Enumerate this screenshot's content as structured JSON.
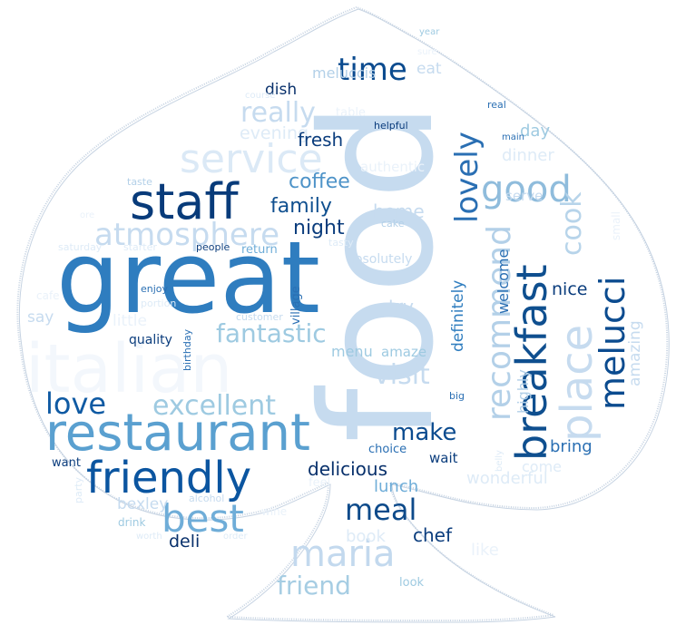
{
  "title": "",
  "colors": {
    "background": "#ffffff",
    "outline": "#c6d3e2",
    "palette": [
      "#08306b",
      "#08519c",
      "#2171b5",
      "#4292c6",
      "#6baed6",
      "#9ecae1",
      "#c6dbef",
      "#deebf7",
      "#eff5fb"
    ]
  },
  "words": [
    {
      "text": "food",
      "color": "#c6dbef",
      "vertical": true
    },
    {
      "text": "great",
      "color": "#2f7dbf",
      "vertical": false
    },
    {
      "text": "italian",
      "color": "#f3f7fc",
      "vertical": false
    },
    {
      "text": "restaurant",
      "color": "#5aa0d0",
      "vertical": false
    },
    {
      "text": "friendly",
      "color": "#0b55a0",
      "vertical": false
    },
    {
      "text": "staff",
      "color": "#083b7a",
      "vertical": false
    },
    {
      "text": "breakfast",
      "color": "#0f4f8f",
      "vertical": true
    },
    {
      "text": "place",
      "color": "#c6dbef",
      "vertical": true
    },
    {
      "text": "melucci",
      "color": "#0b4b8f",
      "vertical": true
    },
    {
      "text": "recommend",
      "color": "#b3d0e8",
      "vertical": true
    },
    {
      "text": "lovely",
      "color": "#2a6fb3",
      "vertical": true
    },
    {
      "text": "service",
      "color": "#dbe9f6",
      "vertical": false
    },
    {
      "text": "good",
      "color": "#8fbcdc",
      "vertical": false
    },
    {
      "text": "best",
      "color": "#6fadd8",
      "vertical": false
    },
    {
      "text": "maria",
      "color": "#c3d9ee",
      "vertical": false
    },
    {
      "text": "atmosphere",
      "color": "#c6dbef",
      "vertical": false
    },
    {
      "text": "excellent",
      "color": "#9ecae1",
      "vertical": false
    },
    {
      "text": "meal",
      "color": "#0d4a8a",
      "vertical": false
    },
    {
      "text": "love",
      "color": "#0f5aa3",
      "vertical": false
    },
    {
      "text": "time",
      "color": "#0b4b8f",
      "vertical": false
    },
    {
      "text": "really",
      "color": "#c6dbef",
      "vertical": false
    },
    {
      "text": "fantastic",
      "color": "#9ecae1",
      "vertical": false
    },
    {
      "text": "visit",
      "color": "#c6dbef",
      "vertical": false
    },
    {
      "text": "cook",
      "color": "#b7d4ea",
      "vertical": true
    },
    {
      "text": "make",
      "color": "#0b4b8f",
      "vertical": false
    },
    {
      "text": "friend",
      "color": "#a6cde3",
      "vertical": false
    },
    {
      "text": "family",
      "color": "#0f4f8f",
      "vertical": false
    },
    {
      "text": "coffee",
      "color": "#4e93c8",
      "vertical": false
    },
    {
      "text": "night",
      "color": "#0b3d7d",
      "vertical": false
    },
    {
      "text": "home",
      "color": "#c6dbef",
      "vertical": false
    },
    {
      "text": "evening",
      "color": "#deebf7",
      "vertical": false
    },
    {
      "text": "fresh",
      "color": "#0b3d7d",
      "vertical": false
    },
    {
      "text": "dish",
      "color": "#08306b",
      "vertical": false
    },
    {
      "text": "eat",
      "color": "#c6dbef",
      "vertical": false
    },
    {
      "text": "meluccis",
      "color": "#b3d0e8",
      "vertical": false
    },
    {
      "text": "day",
      "color": "#9ecae1",
      "vertical": false
    },
    {
      "text": "dinner",
      "color": "#deebf7",
      "vertical": false
    },
    {
      "text": "authentic",
      "color": "#eaf2fa",
      "vertical": false
    },
    {
      "text": "serve",
      "color": "#c6dbef",
      "vertical": false
    },
    {
      "text": "welcome",
      "color": "#2a6fb3",
      "vertical": true
    },
    {
      "text": "definitely",
      "color": "#2f7dbf",
      "vertical": true
    },
    {
      "text": "highly",
      "color": "#b3d0e8",
      "vertical": true
    },
    {
      "text": "try",
      "color": "#c6dbef",
      "vertical": false
    },
    {
      "text": "nice",
      "color": "#0b3d7d",
      "vertical": false
    },
    {
      "text": "amazing",
      "color": "#c6dbef",
      "vertical": true
    },
    {
      "text": "delicious",
      "color": "#08306b",
      "vertical": false
    },
    {
      "text": "lunch",
      "color": "#6fadd8",
      "vertical": false
    },
    {
      "text": "bring",
      "color": "#2a6fb3",
      "vertical": false
    },
    {
      "text": "menu",
      "color": "#9ecae1",
      "vertical": false
    },
    {
      "text": "amaze",
      "color": "#9ecae1",
      "vertical": false
    },
    {
      "text": "chef",
      "color": "#0b3d7d",
      "vertical": false
    },
    {
      "text": "wonderful",
      "color": "#deebf7",
      "vertical": false
    },
    {
      "text": "come",
      "color": "#deebf7",
      "vertical": false
    },
    {
      "text": "bexley",
      "color": "#c6dbef",
      "vertical": false
    },
    {
      "text": "deli",
      "color": "#08306b",
      "vertical": false
    },
    {
      "text": "book",
      "color": "#deebf7",
      "vertical": false
    },
    {
      "text": "like",
      "color": "#eaf2fa",
      "vertical": false
    },
    {
      "text": "wait",
      "color": "#0b3d7d",
      "vertical": false
    },
    {
      "text": "choice",
      "color": "#2a6fb3",
      "vertical": false
    },
    {
      "text": "want",
      "color": "#0b3d7d",
      "vertical": false
    },
    {
      "text": "little",
      "color": "#eaf2fa",
      "vertical": false
    },
    {
      "text": "say",
      "color": "#c6dbef",
      "vertical": false
    },
    {
      "text": "quality",
      "color": "#0b3d7d",
      "vertical": false
    },
    {
      "text": "return",
      "color": "#6fadd8",
      "vertical": false
    },
    {
      "text": "absolutely",
      "color": "#c6dbef",
      "vertical": false
    },
    {
      "text": "village",
      "color": "#2a6fb3",
      "vertical": true
    },
    {
      "text": "customer",
      "color": "#c6dbef",
      "vertical": false
    },
    {
      "text": "birthday",
      "color": "#2a6fb3",
      "vertical": true
    },
    {
      "text": "enjoy",
      "color": "#2a6fb3",
      "vertical": false
    },
    {
      "text": "portion",
      "color": "#deebf7",
      "vertical": false
    },
    {
      "text": "people",
      "color": "#0b3d7d",
      "vertical": false
    },
    {
      "text": "tasty",
      "color": "#deebf7",
      "vertical": false
    },
    {
      "text": "cake",
      "color": "#b3d0e8",
      "vertical": false
    },
    {
      "text": "taste",
      "color": "#b3d0e8",
      "vertical": false
    },
    {
      "text": "starter",
      "color": "#deebf7",
      "vertical": false
    },
    {
      "text": "saturday",
      "color": "#deebf7",
      "vertical": false
    },
    {
      "text": "cafe",
      "color": "#eaf2fa",
      "vertical": false
    },
    {
      "text": "drink",
      "color": "#9ecae1",
      "vertical": false
    },
    {
      "text": "wine",
      "color": "#eaf2fa",
      "vertical": false
    },
    {
      "text": "worth",
      "color": "#deebf7",
      "vertical": false
    },
    {
      "text": "order",
      "color": "#deebf7",
      "vertical": false
    },
    {
      "text": "alcohol",
      "color": "#c6dbef",
      "vertical": false
    },
    {
      "text": "party",
      "color": "#deebf7",
      "vertical": true
    },
    {
      "text": "feel",
      "color": "#eaf2fa",
      "vertical": false
    },
    {
      "text": "look",
      "color": "#9ecae1",
      "vertical": false
    },
    {
      "text": "helpful",
      "color": "#0b3d7d",
      "vertical": false
    },
    {
      "text": "course",
      "color": "#deebf7",
      "vertical": false
    },
    {
      "text": "table",
      "color": "#eaf2fa",
      "vertical": false
    },
    {
      "text": "year",
      "color": "#9ecae1",
      "vertical": false
    },
    {
      "text": "sure",
      "color": "#eaf2fa",
      "vertical": false
    },
    {
      "text": "real",
      "color": "#2a6fb3",
      "vertical": false
    },
    {
      "text": "main",
      "color": "#2a6fb3",
      "vertical": false
    },
    {
      "text": "small",
      "color": "#eaf2fa",
      "vertical": true
    },
    {
      "text": "big",
      "color": "#2a6fb3",
      "vertical": false
    },
    {
      "text": "belly",
      "color": "#deebf7",
      "vertical": true
    },
    {
      "text": "ore",
      "color": "#eaf2fa",
      "vertical": false
    }
  ]
}
